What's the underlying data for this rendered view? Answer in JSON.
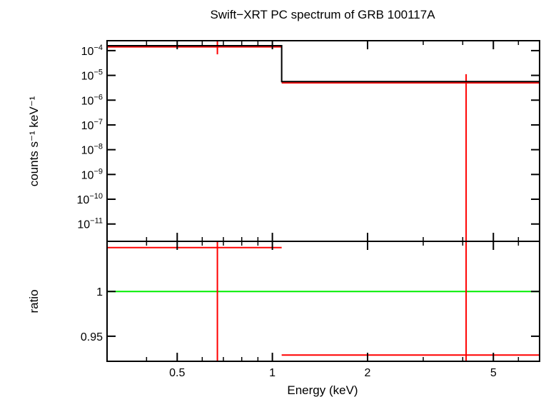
{
  "chart_data": [
    {
      "type": "line",
      "title": "Swift−XRT PC spectrum of GRB 100117A",
      "ylabel": "counts s⁻¹ keV⁻¹",
      "xscale": "log",
      "yscale": "log",
      "xlim": [
        0.3,
        7.0
      ],
      "ylim_exp": [
        -11.7,
        -3.6
      ],
      "y_ticks": [
        {
          "exp": -4,
          "label": "10",
          "sup": "−4"
        },
        {
          "exp": -5,
          "label": "10",
          "sup": "−5"
        },
        {
          "exp": -6,
          "label": "10",
          "sup": "−6"
        },
        {
          "exp": -7,
          "label": "10",
          "sup": "−7"
        },
        {
          "exp": -8,
          "label": "10",
          "sup": "−8"
        },
        {
          "exp": -9,
          "label": "10",
          "sup": "−9"
        },
        {
          "exp": -10,
          "label": "10",
          "sup": "−10"
        },
        {
          "exp": -11,
          "label": "10",
          "sup": "−11"
        }
      ],
      "model": [
        {
          "x0": 0.3,
          "x1": 1.07,
          "exp": -3.8
        },
        {
          "x0": 1.07,
          "x1": 7.0,
          "exp": -5.25
        }
      ],
      "data_points": [
        {
          "x0": 0.3,
          "x1": 1.07,
          "xc": 0.67,
          "exp": -3.85,
          "err_lo_exp": -4.15,
          "err_hi_exp": -3.6
        },
        {
          "x0": 1.07,
          "x1": 7.0,
          "xc": 4.1,
          "exp": -5.3,
          "err_lo_exp": -11.7,
          "err_hi_exp": -4.95
        }
      ]
    },
    {
      "type": "line",
      "ylabel": "ratio",
      "xlabel": "Energy (keV)",
      "xscale": "log",
      "xlim": [
        0.3,
        7.0
      ],
      "ylim": [
        0.922,
        1.056
      ],
      "y_ticks": [
        {
          "value": 0.95,
          "label": "0.95"
        },
        {
          "value": 1.0,
          "label": "1"
        }
      ],
      "x_ticks": [
        {
          "value": 0.5,
          "label": "0.5"
        },
        {
          "value": 1,
          "label": "1"
        },
        {
          "value": 2,
          "label": "2"
        },
        {
          "value": 5,
          "label": "5"
        }
      ],
      "reference": 1.0,
      "data_points": [
        {
          "x0": 0.3,
          "x1": 1.07,
          "xc": 0.67,
          "y": 1.049
        },
        {
          "x0": 1.07,
          "x1": 7.0,
          "xc": 4.1,
          "y": 0.929
        }
      ]
    }
  ],
  "colors": {
    "model": "#000000",
    "data": "#ff0000",
    "reference": "#00ee00"
  }
}
